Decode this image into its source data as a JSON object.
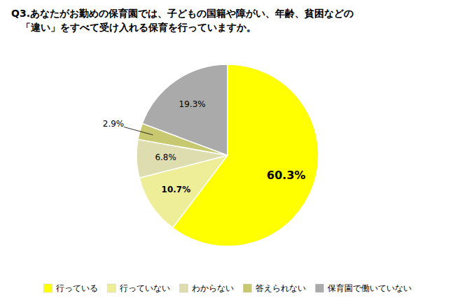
{
  "chart_data": {
    "type": "pie",
    "title": "Q3.あなたがお勤めの保育園では、子どもの国籍や障がい、年齢、貧困などの",
    "subtitle": "　「違い」をすべて受け入れる保育を行っていますか。",
    "categories": [
      "行っている",
      "行っていない",
      "わからない",
      "答えられない",
      "保育園で働いていない"
    ],
    "values": [
      60.3,
      10.7,
      6.8,
      2.9,
      19.3
    ],
    "value_labels": [
      "60.3%",
      "10.7%",
      "6.8%",
      "2.9%",
      "19.3%"
    ],
    "colors": [
      "#FFFF00",
      "#EEEE99",
      "#DDDDB0",
      "#C8C870",
      "#AAAAAA"
    ],
    "data_labels": true,
    "legend": "bottom"
  }
}
